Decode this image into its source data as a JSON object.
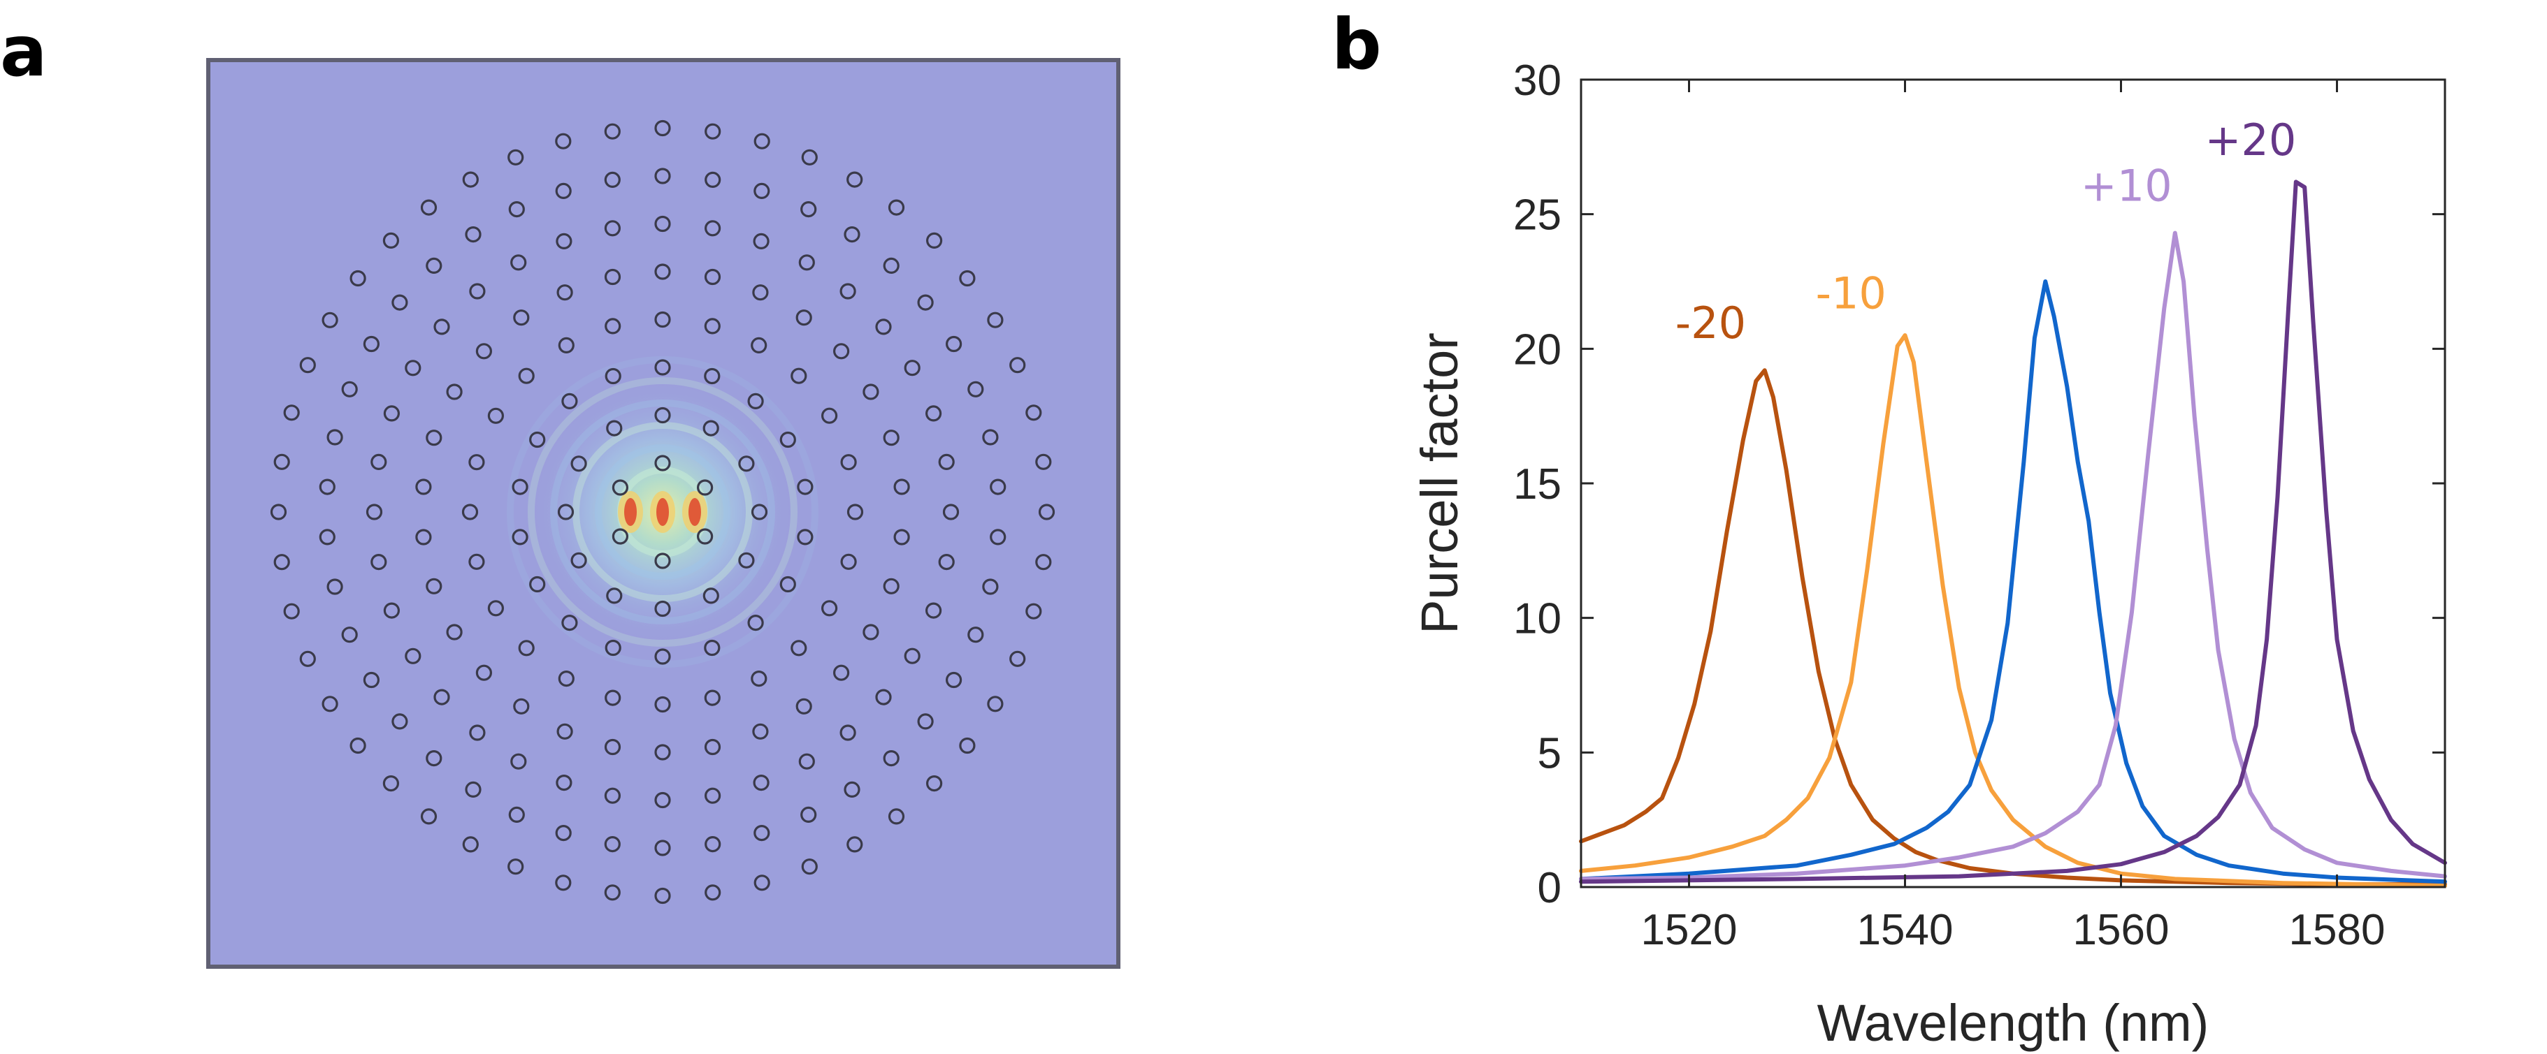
{
  "panel_labels": {
    "a": "a",
    "b": "b"
  },
  "field_map": {
    "background_color": "#9c9fdc",
    "border_color": "#606073",
    "hole_color": "#3a3a4a",
    "rings": [
      {
        "count": 6
      },
      {
        "count": 12
      },
      {
        "count": 18
      },
      {
        "count": 24
      },
      {
        "count": 30
      },
      {
        "count": 36
      },
      {
        "count": 42
      },
      {
        "count": 48
      }
    ]
  },
  "chart_data": {
    "type": "line",
    "xlabel": "Wavelength (nm)",
    "ylabel": "Purcell factor",
    "xlim": [
      1510,
      1590
    ],
    "ylim": [
      0,
      30
    ],
    "xticks": [
      1520,
      1540,
      1560,
      1580
    ],
    "yticks": [
      0,
      5,
      10,
      15,
      20,
      25,
      30
    ],
    "grid": false,
    "series": [
      {
        "name": "-20",
        "color": "#b8520f",
        "label_at": [
          1522,
          20.4
        ],
        "points": [
          [
            1510,
            1.7
          ],
          [
            1512,
            2.0
          ],
          [
            1514,
            2.3
          ],
          [
            1516,
            2.8
          ],
          [
            1517.5,
            3.3
          ],
          [
            1519,
            4.8
          ],
          [
            1520.5,
            6.8
          ],
          [
            1522,
            9.5
          ],
          [
            1523.5,
            13.2
          ],
          [
            1525,
            16.6
          ],
          [
            1526.2,
            18.8
          ],
          [
            1527,
            19.2
          ],
          [
            1527.8,
            18.2
          ],
          [
            1529,
            15.5
          ],
          [
            1530.5,
            11.5
          ],
          [
            1532,
            8.0
          ],
          [
            1533.5,
            5.5
          ],
          [
            1535,
            3.8
          ],
          [
            1537,
            2.5
          ],
          [
            1539,
            1.8
          ],
          [
            1541,
            1.3
          ],
          [
            1543,
            1.0
          ],
          [
            1546,
            0.7
          ],
          [
            1550,
            0.5
          ],
          [
            1555,
            0.35
          ],
          [
            1560,
            0.25
          ],
          [
            1570,
            0.15
          ],
          [
            1580,
            0.1
          ],
          [
            1590,
            0.1
          ]
        ]
      },
      {
        "name": "-10",
        "color": "#f7a03c",
        "label_at": [
          1535,
          21.5
        ],
        "points": [
          [
            1510,
            0.6
          ],
          [
            1515,
            0.8
          ],
          [
            1520,
            1.1
          ],
          [
            1524,
            1.5
          ],
          [
            1527,
            1.9
          ],
          [
            1529,
            2.5
          ],
          [
            1531,
            3.3
          ],
          [
            1533,
            4.8
          ],
          [
            1535,
            7.6
          ],
          [
            1536.5,
            11.8
          ],
          [
            1538,
            16.5
          ],
          [
            1539.3,
            20.1
          ],
          [
            1540,
            20.5
          ],
          [
            1540.8,
            19.5
          ],
          [
            1542,
            15.8
          ],
          [
            1543.5,
            11.2
          ],
          [
            1545,
            7.4
          ],
          [
            1546.5,
            5.0
          ],
          [
            1548,
            3.6
          ],
          [
            1550,
            2.5
          ],
          [
            1553,
            1.5
          ],
          [
            1556,
            0.9
          ],
          [
            1560,
            0.5
          ],
          [
            1565,
            0.3
          ],
          [
            1575,
            0.15
          ],
          [
            1590,
            0.05
          ]
        ]
      },
      {
        "name": "",
        "color": "#1166cc",
        "label_at": null,
        "points": [
          [
            1510,
            0.3
          ],
          [
            1520,
            0.5
          ],
          [
            1530,
            0.8
          ],
          [
            1535,
            1.2
          ],
          [
            1539,
            1.6
          ],
          [
            1542,
            2.2
          ],
          [
            1544,
            2.8
          ],
          [
            1546,
            3.8
          ],
          [
            1548,
            6.2
          ],
          [
            1549.5,
            9.8
          ],
          [
            1551,
            15.8
          ],
          [
            1552,
            20.4
          ],
          [
            1553,
            22.5
          ],
          [
            1553.8,
            21.2
          ],
          [
            1555,
            18.6
          ],
          [
            1556,
            15.8
          ],
          [
            1557,
            13.6
          ],
          [
            1558,
            10.2
          ],
          [
            1559,
            7.2
          ],
          [
            1560.5,
            4.6
          ],
          [
            1562,
            3.0
          ],
          [
            1564,
            1.9
          ],
          [
            1567,
            1.2
          ],
          [
            1570,
            0.8
          ],
          [
            1575,
            0.5
          ],
          [
            1580,
            0.35
          ],
          [
            1590,
            0.2
          ]
        ]
      },
      {
        "name": "+10",
        "color": "#b18fd4",
        "label_at": [
          1560.5,
          25.5
        ],
        "points": [
          [
            1510,
            0.3
          ],
          [
            1520,
            0.35
          ],
          [
            1530,
            0.5
          ],
          [
            1540,
            0.8
          ],
          [
            1545,
            1.1
          ],
          [
            1550,
            1.5
          ],
          [
            1553,
            2.0
          ],
          [
            1556,
            2.8
          ],
          [
            1558,
            3.8
          ],
          [
            1559.5,
            6.0
          ],
          [
            1561,
            10.2
          ],
          [
            1562.5,
            16.0
          ],
          [
            1564,
            21.5
          ],
          [
            1565,
            24.3
          ],
          [
            1565.8,
            22.5
          ],
          [
            1566.8,
            17.5
          ],
          [
            1568,
            12.5
          ],
          [
            1569,
            8.8
          ],
          [
            1570.5,
            5.5
          ],
          [
            1572,
            3.5
          ],
          [
            1574,
            2.2
          ],
          [
            1577,
            1.4
          ],
          [
            1580,
            0.9
          ],
          [
            1585,
            0.6
          ],
          [
            1590,
            0.4
          ]
        ]
      },
      {
        "name": "+20",
        "color": "#653788",
        "label_at": [
          1572,
          27.2
        ],
        "points": [
          [
            1510,
            0.2
          ],
          [
            1530,
            0.3
          ],
          [
            1545,
            0.4
          ],
          [
            1555,
            0.6
          ],
          [
            1560,
            0.85
          ],
          [
            1564,
            1.3
          ],
          [
            1567,
            1.9
          ],
          [
            1569,
            2.6
          ],
          [
            1571,
            3.8
          ],
          [
            1572.5,
            6.0
          ],
          [
            1573.5,
            9.2
          ],
          [
            1574.5,
            14.5
          ],
          [
            1575.5,
            21.5
          ],
          [
            1576.2,
            26.2
          ],
          [
            1577,
            26.0
          ],
          [
            1577.8,
            21.0
          ],
          [
            1579,
            14.0
          ],
          [
            1580,
            9.2
          ],
          [
            1581.5,
            5.8
          ],
          [
            1583,
            4.0
          ],
          [
            1585,
            2.5
          ],
          [
            1587,
            1.6
          ],
          [
            1590,
            0.9
          ]
        ]
      }
    ]
  }
}
